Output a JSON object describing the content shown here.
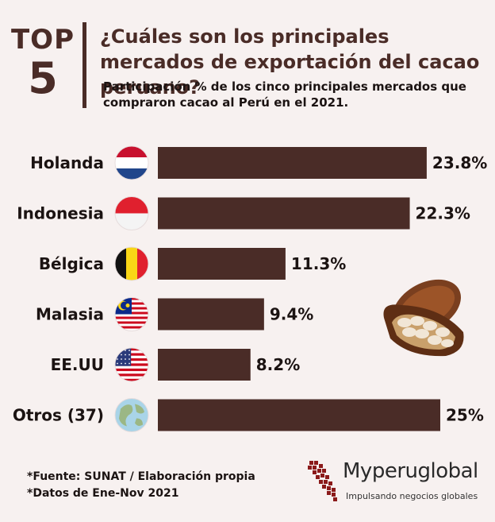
{
  "badge": {
    "line1": "TOP",
    "line2": "5"
  },
  "title": "¿Cuáles son los principales mercados de exportación del cacao peruano?",
  "subtitle": "Participación % de los cinco principales mercados que compraron cacao al Perú en el 2021.",
  "colors": {
    "bar": "#4a2c27",
    "background": "#f7f1f0",
    "accent": "#4a2c27"
  },
  "chart_data": {
    "type": "bar",
    "orientation": "horizontal",
    "categories": [
      "Holanda",
      "Indonesia",
      "Bélgica",
      "Malasia",
      "EE.UU",
      "Otros (37)"
    ],
    "values": [
      23.8,
      22.3,
      11.3,
      9.4,
      8.2,
      25
    ],
    "value_labels": [
      "23.8%",
      "22.3%",
      "11.3%",
      "9.4%",
      "8.2%",
      "25%"
    ],
    "flags": [
      "netherlands-flag-icon",
      "indonesia-flag-icon",
      "belgium-flag-icon",
      "malaysia-flag-icon",
      "usa-flag-icon",
      "globe-icon"
    ],
    "xlim": [
      0,
      25
    ],
    "grid": false
  },
  "footer": {
    "source": "*Fuente: SUNAT / Elaboración propia",
    "dates": "*Datos de Ene-Nov 2021"
  },
  "logo": {
    "brand": "Myperuglobal",
    "tagline": "Impulsando negocios globales"
  }
}
